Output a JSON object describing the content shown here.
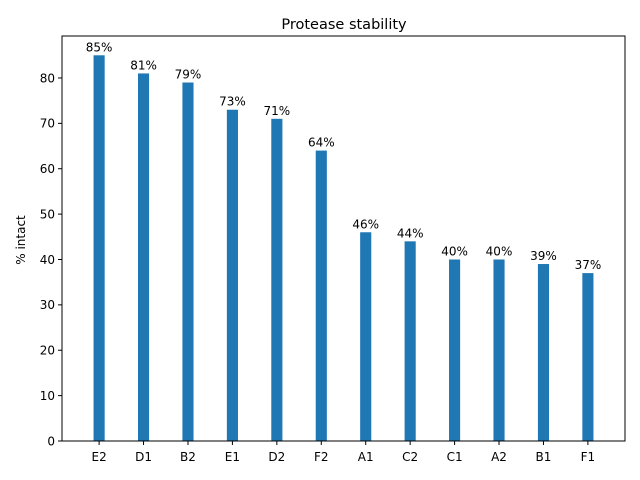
{
  "chart_data": {
    "type": "bar",
    "title": "Protease stability",
    "xlabel": "",
    "ylabel": "% intact",
    "categories": [
      "E2",
      "D1",
      "B2",
      "E1",
      "D2",
      "F2",
      "A1",
      "C2",
      "C1",
      "A2",
      "B1",
      "F1"
    ],
    "values": [
      85,
      81,
      79,
      73,
      71,
      64,
      46,
      44,
      40,
      40,
      39,
      37
    ],
    "data_labels": [
      "85%",
      "81%",
      "79%",
      "73%",
      "71%",
      "64%",
      "46%",
      "44%",
      "40%",
      "40%",
      "39%",
      "37%"
    ],
    "ylim": [
      0,
      89.25
    ],
    "yticks": [
      0,
      10,
      20,
      30,
      40,
      50,
      60,
      70,
      80
    ],
    "grid": false,
    "bar_color": "#1f77b4"
  }
}
